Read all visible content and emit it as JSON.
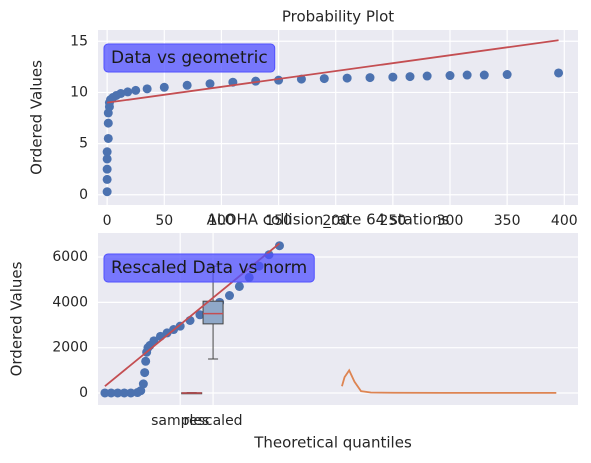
{
  "chart_data": [
    {
      "type": "scatter",
      "title": "Probability Plot",
      "ylabel": "Ordered Values",
      "annotation": "Data vs geometric",
      "xlim": [
        -8,
        412
      ],
      "ylim": [
        -1,
        16.1
      ],
      "xticks": [
        0,
        50,
        100,
        150,
        200,
        250,
        300,
        350,
        400
      ],
      "yticks": [
        0,
        5,
        10,
        15
      ],
      "grid": true,
      "points": {
        "color": "#4c72b0",
        "x": [
          0,
          0,
          0,
          0,
          0,
          1,
          1,
          1,
          2,
          2,
          3,
          5,
          8,
          12,
          18,
          25,
          35,
          50,
          70,
          90,
          110,
          130,
          150,
          170,
          190,
          210,
          230,
          250,
          265,
          280,
          300,
          315,
          330,
          350,
          395
        ],
        "y": [
          0.3,
          1.5,
          2.5,
          3.5,
          4.2,
          5.5,
          7,
          8,
          8.6,
          9,
          9.3,
          9.5,
          9.7,
          9.9,
          10.05,
          10.2,
          10.35,
          10.5,
          10.7,
          10.85,
          11,
          11.1,
          11.2,
          11.3,
          11.35,
          11.4,
          11.45,
          11.5,
          11.55,
          11.6,
          11.65,
          11.7,
          11.7,
          11.75,
          11.9
        ]
      },
      "fit_line": {
        "color": "#c44e52",
        "x": [
          0,
          395
        ],
        "y": [
          9,
          15.1
        ]
      }
    },
    {
      "type": "scatter",
      "title": "ALOHA collision_rate 64 stations",
      "ylabel": "Ordered Values",
      "xlabel": "Theoretical quantiles",
      "annotation": "Rescaled Data vs norm",
      "xlim": [
        -1.5,
        13.1
      ],
      "ylim": [
        -530,
        7060
      ],
      "xticks": [
        {
          "value": 1,
          "label": "samples"
        },
        {
          "value": 2,
          "label": "rescaled"
        }
      ],
      "yticks": [
        0,
        2000,
        4000,
        6000
      ],
      "grid": true,
      "points": {
        "color": "#4c72b0",
        "x": [
          -1.29,
          -1.1,
          -0.9,
          -0.7,
          -0.5,
          -0.3,
          -0.2,
          -0.12,
          -0.08,
          -0.05,
          -0.02,
          0.02,
          0.08,
          0.2,
          0.4,
          0.6,
          0.8,
          1,
          1.3,
          1.6,
          1.9,
          2.2,
          2.5,
          2.8,
          3.1,
          3.4,
          3.7,
          4.02
        ],
        "y": [
          0,
          0,
          0,
          0,
          0,
          20,
          100,
          400,
          900,
          1400,
          1800,
          2000,
          2100,
          2300,
          2500,
          2650,
          2800,
          2950,
          3200,
          3450,
          3700,
          4000,
          4300,
          4700,
          5100,
          5600,
          6100,
          6500
        ]
      },
      "fit_line": {
        "color": "#c44e52",
        "x": [
          -1.29,
          4.02
        ],
        "y": [
          300,
          6600
        ]
      },
      "boxes": [
        {
          "position": 1.35,
          "whislo": 0,
          "q1": 0,
          "med": 0,
          "q3": 10,
          "whishi": 20,
          "color": "#8fa8c8"
        },
        {
          "position": 2,
          "whislo": 1500,
          "q1": 3050,
          "med": 3500,
          "q3": 4050,
          "whishi": 5600,
          "color": "#8fa8c8"
        }
      ],
      "kde": {
        "color": "#dd8452",
        "x": [
          5.92,
          6.0,
          6.14,
          6.3,
          6.5,
          6.8,
          7.5,
          9,
          12.44
        ],
        "y": [
          300,
          700,
          1000,
          500,
          80,
          20,
          10,
          5,
          5
        ]
      }
    }
  ]
}
